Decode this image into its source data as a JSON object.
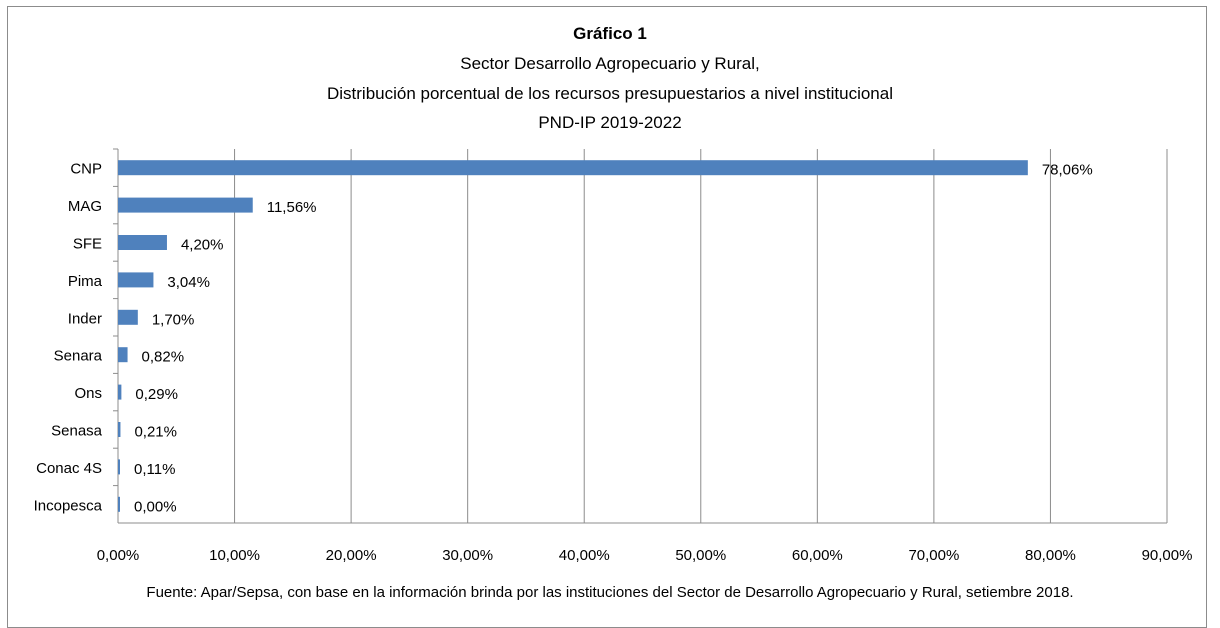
{
  "chart_data": {
    "type": "bar",
    "orientation": "horizontal",
    "title": "Gráfico 1",
    "subtitle_lines": [
      "Sector Desarrollo Agropecuario y Rural,",
      "Distribución porcentual de los recursos presupuestarios a nivel institucional",
      "PND-IP 2019-2022"
    ],
    "categories": [
      "CNP",
      "MAG",
      "SFE",
      "Pima",
      "Inder",
      "Senara",
      "Ons",
      "Senasa",
      "Conac 4S",
      "Incopesca"
    ],
    "values": [
      78.06,
      11.56,
      4.2,
      3.04,
      1.7,
      0.82,
      0.29,
      0.21,
      0.11,
      0.0
    ],
    "value_labels": [
      "78,06%",
      "11,56%",
      "4,20%",
      "3,04%",
      "1,70%",
      "0,82%",
      "0,29%",
      "0,21%",
      "0,11%",
      "0,00%"
    ],
    "xlim": [
      0,
      90
    ],
    "x_ticks": [
      0,
      10,
      20,
      30,
      40,
      50,
      60,
      70,
      80,
      90
    ],
    "x_tick_labels": [
      "0,00%",
      "10,00%",
      "20,00%",
      "30,00%",
      "40,00%",
      "50,00%",
      "60,00%",
      "70,00%",
      "80,00%",
      "90,00%"
    ],
    "grid": "vertical",
    "bar_color": "#4F81BD",
    "source": "Fuente: Apar/Sepsa,  con base en la información brinda por las instituciones del Sector  de Desarrollo Agropecuario y Rural, setiembre 2018."
  }
}
